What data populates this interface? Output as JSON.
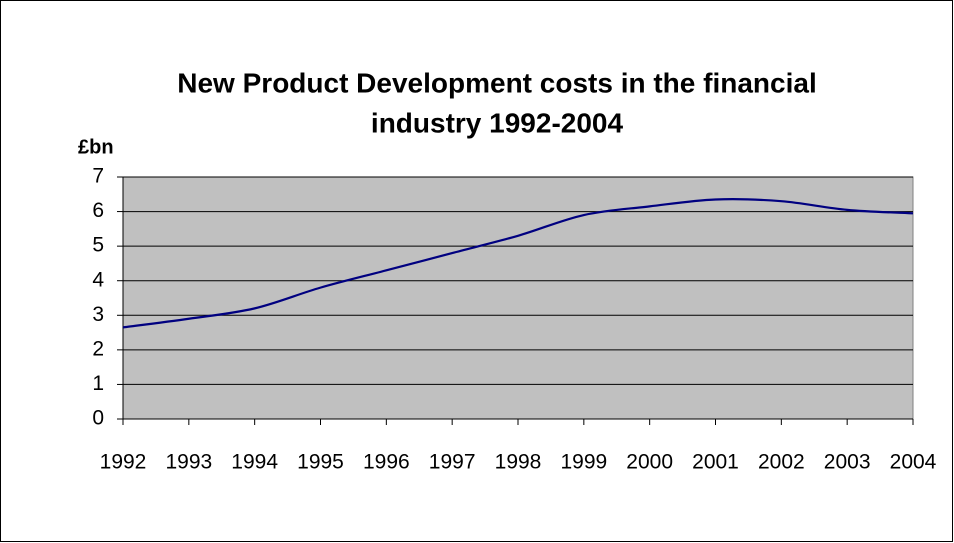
{
  "chart_data": {
    "type": "line",
    "title": [
      "New Product Development costs in the financial",
      "industry 1992-2004"
    ],
    "y_label": "£bn",
    "categories": [
      "1992",
      "1993",
      "1994",
      "1995",
      "1996",
      "1997",
      "1998",
      "1999",
      "2000",
      "2001",
      "2002",
      "2003",
      "2004"
    ],
    "values": [
      2.65,
      2.9,
      3.2,
      3.8,
      4.3,
      4.8,
      5.3,
      5.9,
      6.15,
      6.35,
      6.3,
      6.05,
      5.95
    ],
    "color": "#000080",
    "ylim": [
      0,
      7
    ],
    "yticks": [
      0,
      1,
      2,
      3,
      4,
      5,
      6,
      7
    ],
    "grid": true,
    "smooth": true
  }
}
